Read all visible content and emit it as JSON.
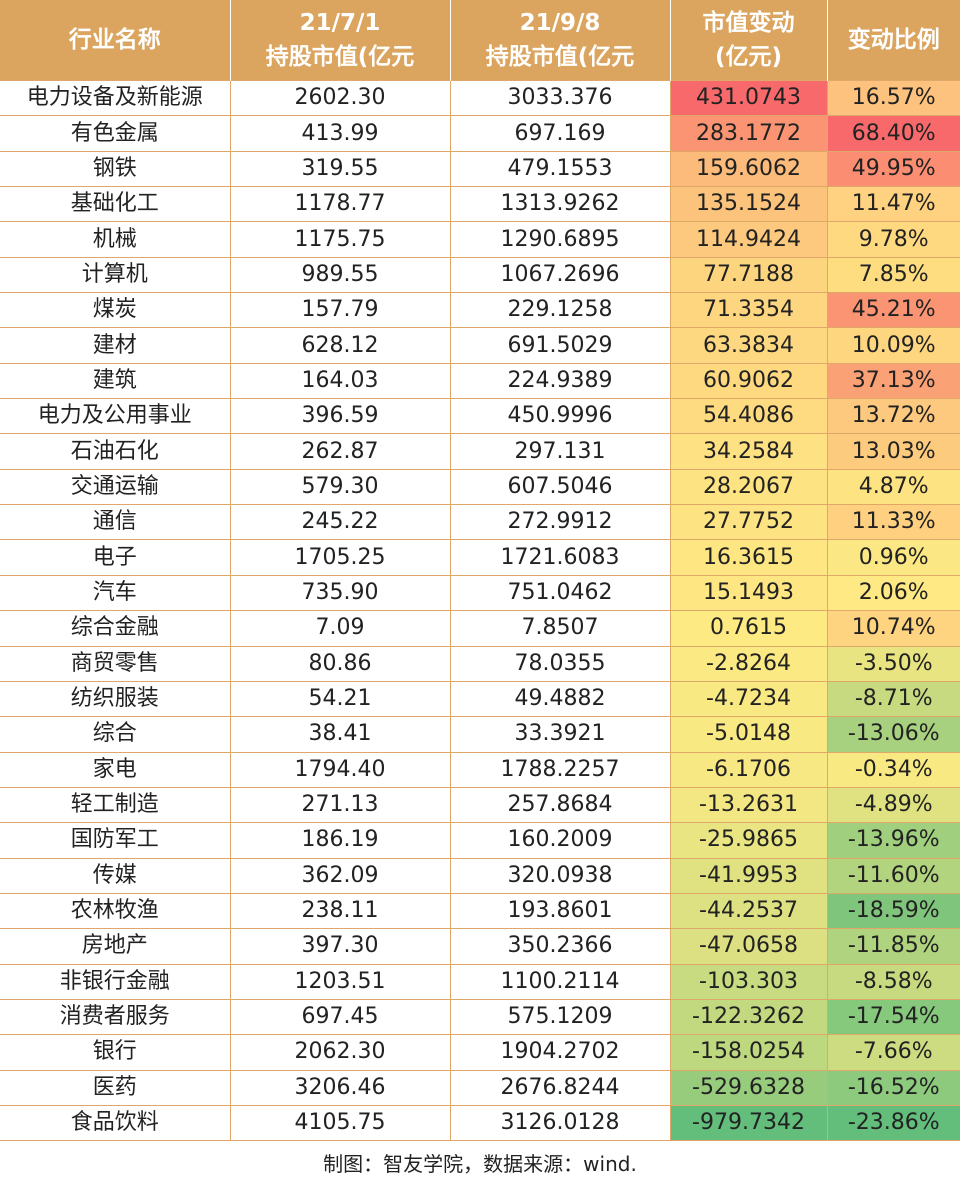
{
  "header": {
    "col0": "行业名称",
    "col1_line1": "21/7/1",
    "col1_line2": "持股市值(亿元",
    "col2_line1": "21/9/8",
    "col2_line2": "持股市值(亿元",
    "col3_line1": "市值变动",
    "col3_line2": "(亿元)",
    "col4": "变动比例"
  },
  "colors": {
    "header_bg": "#dba55f",
    "border": "#e0a868"
  },
  "rows": [
    {
      "name": "电力设备及新能源",
      "v1": "2602.30",
      "v2": "3033.376",
      "chg": "431.0743",
      "pct": "16.57%",
      "chg_color": "#f8696b",
      "pct_color": "#fdc27d"
    },
    {
      "name": "有色金属",
      "v1": "413.99",
      "v2": "697.169",
      "chg": "283.1772",
      "pct": "68.40%",
      "chg_color": "#fa9473",
      "pct_color": "#f8696b"
    },
    {
      "name": "钢铁",
      "v1": "319.55",
      "v2": "479.1553",
      "chg": "159.6062",
      "pct": "49.95%",
      "chg_color": "#fcbb7b",
      "pct_color": "#fa8d72"
    },
    {
      "name": "基础化工",
      "v1": "1178.77",
      "v2": "1313.9262",
      "chg": "135.1524",
      "pct": "11.47%",
      "chg_color": "#fcc37c",
      "pct_color": "#fed280"
    },
    {
      "name": "机械",
      "v1": "1175.75",
      "v2": "1290.6895",
      "chg": "114.9424",
      "pct": "9.78%",
      "chg_color": "#fdc97e",
      "pct_color": "#fed980"
    },
    {
      "name": "计算机",
      "v1": "989.55",
      "v2": "1067.2696",
      "chg": "77.7188",
      "pct": "7.85%",
      "chg_color": "#fed57f",
      "pct_color": "#fedd81"
    },
    {
      "name": "煤炭",
      "v1": "157.79",
      "v2": "229.1258",
      "chg": "71.3354",
      "pct": "45.21%",
      "chg_color": "#fed680",
      "pct_color": "#fa9473"
    },
    {
      "name": "建材",
      "v1": "628.12",
      "v2": "691.5029",
      "chg": "63.3834",
      "pct": "10.09%",
      "chg_color": "#fed880",
      "pct_color": "#fed680"
    },
    {
      "name": "建筑",
      "v1": "164.03",
      "v2": "224.9389",
      "chg": "60.9062",
      "pct": "37.13%",
      "chg_color": "#fed980",
      "pct_color": "#fba176"
    },
    {
      "name": "电力及公用事业",
      "v1": "396.59",
      "v2": "450.9996",
      "chg": "54.4086",
      "pct": "13.72%",
      "chg_color": "#fedb81",
      "pct_color": "#fdc97e"
    },
    {
      "name": "石油石化",
      "v1": "262.87",
      "v2": "297.131",
      "chg": "34.2584",
      "pct": "13.03%",
      "chg_color": "#fee182",
      "pct_color": "#fdcb7e"
    },
    {
      "name": "交通运输",
      "v1": "579.30",
      "v2": "607.5046",
      "chg": "28.2067",
      "pct": "4.87%",
      "chg_color": "#fee382",
      "pct_color": "#fee383"
    },
    {
      "name": "通信",
      "v1": "245.22",
      "v2": "272.9912",
      "chg": "27.7752",
      "pct": "11.33%",
      "chg_color": "#fee382",
      "pct_color": "#fed07f"
    },
    {
      "name": "电子",
      "v1": "1705.25",
      "v2": "1721.6083",
      "chg": "16.3615",
      "pct": "0.96%",
      "chg_color": "#fee783",
      "pct_color": "#fbe884"
    },
    {
      "name": "汽车",
      "v1": "735.90",
      "v2": "751.0462",
      "chg": "15.1493",
      "pct": "2.06%",
      "chg_color": "#fee783",
      "pct_color": "#fee984"
    },
    {
      "name": "综合金融",
      "v1": "7.09",
      "v2": "7.8507",
      "chg": "0.7615",
      "pct": "10.74%",
      "chg_color": "#feea83",
      "pct_color": "#fed480"
    },
    {
      "name": "商贸零售",
      "v1": "80.86",
      "v2": "78.0355",
      "chg": "-2.8264",
      "pct": "-3.50%",
      "chg_color": "#fbe983",
      "pct_color": "#e8e482"
    },
    {
      "name": "纺织服装",
      "v1": "54.21",
      "v2": "49.4882",
      "chg": "-4.7234",
      "pct": "-8.71%",
      "chg_color": "#f9e983",
      "pct_color": "#c7da80"
    },
    {
      "name": "综合",
      "v1": "38.41",
      "v2": "33.3921",
      "chg": "-5.0148",
      "pct": "-13.06%",
      "chg_color": "#f9e983",
      "pct_color": "#a7d17e"
    },
    {
      "name": "家电",
      "v1": "1794.40",
      "v2": "1788.2257",
      "chg": "-6.1706",
      "pct": "-0.34%",
      "chg_color": "#f8e883",
      "pct_color": "#f9e983"
    },
    {
      "name": "轻工制造",
      "v1": "271.13",
      "v2": "257.8684",
      "chg": "-13.2631",
      "pct": "-4.89%",
      "chg_color": "#f2e783",
      "pct_color": "#e0e282"
    },
    {
      "name": "国防军工",
      "v1": "186.19",
      "v2": "160.2009",
      "chg": "-25.9865",
      "pct": "-13.96%",
      "chg_color": "#eae583",
      "pct_color": "#a0cf7e"
    },
    {
      "name": "传媒",
      "v1": "362.09",
      "v2": "320.0938",
      "chg": "-41.9953",
      "pct": "-11.60%",
      "chg_color": "#e0e282",
      "pct_color": "#b2d47f"
    },
    {
      "name": "农林牧渔",
      "v1": "238.11",
      "v2": "193.8601",
      "chg": "-44.2537",
      "pct": "-18.59%",
      "chg_color": "#dee182",
      "pct_color": "#7fc67c"
    },
    {
      "name": "房地产",
      "v1": "397.30",
      "v2": "350.2366",
      "chg": "-47.0658",
      "pct": "-11.85%",
      "chg_color": "#dce082",
      "pct_color": "#afd37f"
    },
    {
      "name": "非银行金融",
      "v1": "1203.51",
      "v2": "1100.2114",
      "chg": "-103.303",
      "pct": "-8.58%",
      "chg_color": "#c9db81",
      "pct_color": "#c8da80"
    },
    {
      "name": "消费者服务",
      "v1": "697.45",
      "v2": "575.1209",
      "chg": "-122.3262",
      "pct": "-17.54%",
      "chg_color": "#c3d980",
      "pct_color": "#86c87c"
    },
    {
      "name": "银行",
      "v1": "2062.30",
      "v2": "1904.2702",
      "chg": "-158.0254",
      "pct": "-7.66%",
      "chg_color": "#bed880",
      "pct_color": "#cedc81"
    },
    {
      "name": "医药",
      "v1": "3206.46",
      "v2": "2676.8244",
      "chg": "-529.6328",
      "pct": "-16.52%",
      "chg_color": "#98cc7d",
      "pct_color": "#8dca7d"
    },
    {
      "name": "食品饮料",
      "v1": "4105.75",
      "v2": "3126.0128",
      "chg": "-979.7342",
      "pct": "-23.86%",
      "chg_color": "#63be7b",
      "pct_color": "#63be7b"
    }
  ],
  "footer": "制图：智友学院，数据来源：wind."
}
